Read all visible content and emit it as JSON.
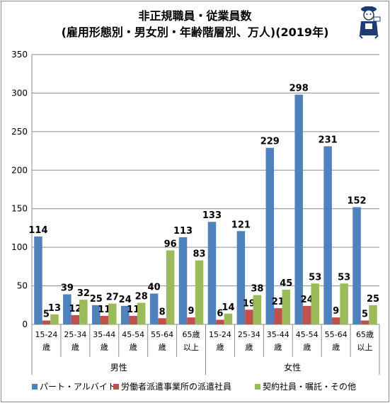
{
  "chart_data": {
    "type": "bar",
    "title": "非正規職員・従業員数",
    "subtitle": "(雇用形態別・男女別・年齢階層別、万人)(2019年)",
    "ylim": [
      0,
      350
    ],
    "yticks": [
      0,
      50,
      100,
      150,
      200,
      250,
      300,
      350
    ],
    "grid": true,
    "legend_position": "bottom",
    "groups": [
      {
        "label": "男性",
        "categories": [
          [
            "15-24",
            "歳"
          ],
          [
            "25-34",
            "歳"
          ],
          [
            "35-44",
            "歳"
          ],
          [
            "45-54",
            "歳"
          ],
          [
            "55-64",
            "歳"
          ],
          [
            "65歳",
            "以上"
          ]
        ]
      },
      {
        "label": "女性",
        "categories": [
          [
            "15-24",
            "歳"
          ],
          [
            "25-34",
            "歳"
          ],
          [
            "35-44",
            "歳"
          ],
          [
            "45-54",
            "歳"
          ],
          [
            "55-64",
            "歳"
          ],
          [
            "65歳",
            "以上"
          ]
        ]
      }
    ],
    "series": [
      {
        "name": "パート・アルバイト",
        "color": "#4f81bd",
        "values": [
          114,
          39,
          25,
          24,
          40,
          113,
          133,
          121,
          229,
          298,
          231,
          152
        ]
      },
      {
        "name": "労働者派遣事業所の派遣社員",
        "color": "#c0504d",
        "values": [
          5,
          12,
          11,
          11,
          8,
          9,
          6,
          19,
          21,
          24,
          9,
          5
        ]
      },
      {
        "name": "契約社員・嘱託・その他",
        "color": "#9bbb59",
        "values": [
          13,
          32,
          27,
          28,
          96,
          83,
          14,
          38,
          45,
          53,
          53,
          25
        ]
      }
    ]
  },
  "mascot": {
    "icon": "reporter-mascot-icon"
  }
}
